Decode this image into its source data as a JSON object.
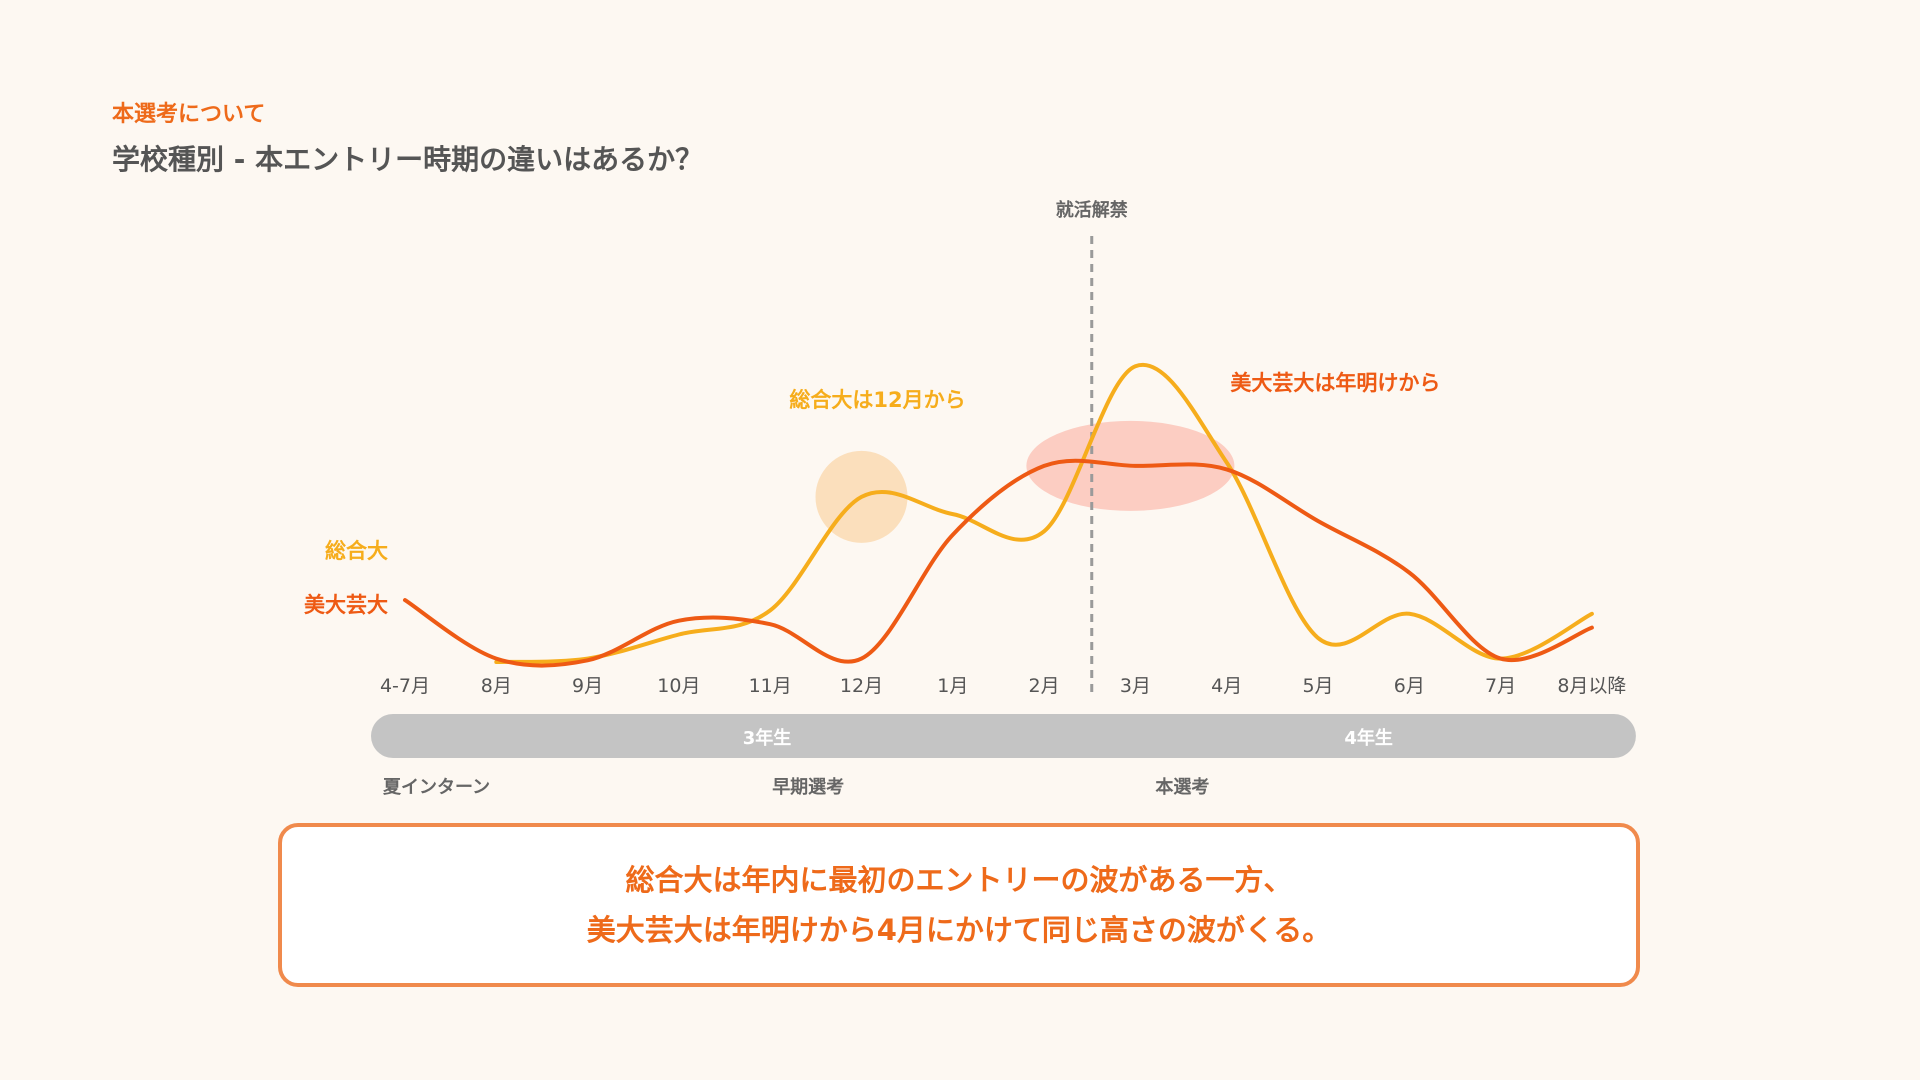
{
  "header": {
    "eyebrow": "本選考について",
    "title": "学校種別 - 本エントリー時期の違いはあるか？"
  },
  "colors": {
    "sogo": "#f6ad1c",
    "bigei": "#ee5a14",
    "accent": "#ee6a1a",
    "divider": "#9a9a9a",
    "period_bar": "#c4c4c4"
  },
  "chart_data": {
    "type": "line",
    "categories": [
      "4-7月",
      "8月",
      "9月",
      "10月",
      "11月",
      "12月",
      "1月",
      "2月",
      "3月",
      "4月",
      "5月",
      "6月",
      "7月",
      "8月以降"
    ],
    "series": [
      {
        "name": "総合大",
        "color": "#f6ad1c",
        "values": [
          null,
          0,
          1,
          8,
          15,
          48,
          43,
          38,
          86,
          58,
          7,
          14,
          1,
          14
        ]
      },
      {
        "name": "美大芸大",
        "color": "#ee5a14",
        "values": [
          18,
          1,
          0.5,
          12,
          11,
          1,
          37,
          57,
          57,
          56,
          41,
          26,
          1,
          10
        ]
      }
    ],
    "ylim": [
      0,
      100
    ],
    "grid": false,
    "vline": {
      "after_category": "2月",
      "label": "就活解禁"
    },
    "annotations": [
      {
        "text": "総合大は12月から",
        "series": "総合大",
        "category": "12月"
      },
      {
        "text": "美大芸大は年明けから",
        "series": "美大芸大",
        "category": "3月"
      }
    ],
    "periods": [
      {
        "label": "3年生",
        "from": "4-7月",
        "to": "2月"
      },
      {
        "label": "4年生",
        "from": "3月",
        "to": "8月以降"
      }
    ],
    "phases": [
      {
        "label": "夏インターン",
        "category": "4-7月"
      },
      {
        "label": "早期選考",
        "category": "11月"
      },
      {
        "label": "本選考",
        "category": "3月"
      }
    ]
  },
  "summary": {
    "line1": "総合大は年内に最初のエントリーの波がある一方、",
    "line2": "美大芸大は年明けから4月にかけて同じ高さの波がくる。"
  }
}
